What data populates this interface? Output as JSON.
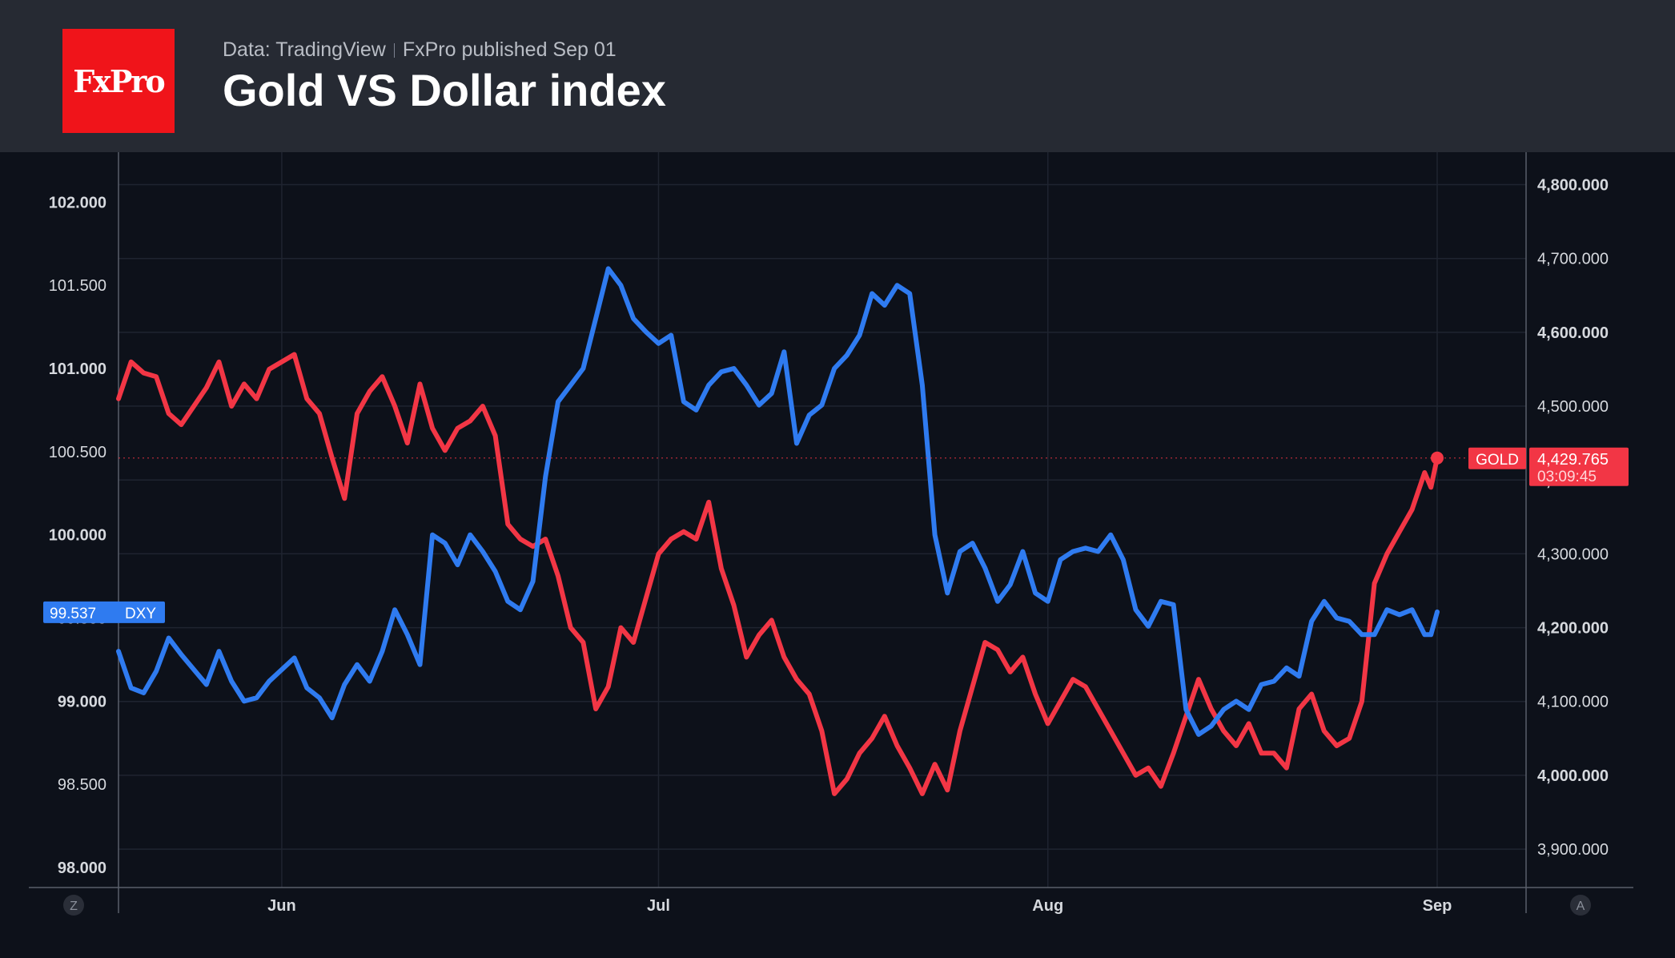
{
  "header": {
    "source": "Data: TradingView",
    "published": "FxPro published Sep 01",
    "title": "Gold VS Dollar index",
    "logo_text": "FxPro"
  },
  "colors": {
    "gold": "#f23645",
    "dxy": "#2f7bf0",
    "brand": "#f0141a"
  },
  "scale_buttons": {
    "left": "Z",
    "right": "A"
  },
  "chart_data": {
    "type": "line",
    "title": "Gold VS Dollar index",
    "x_ticks": [
      "Jun",
      "Jul",
      "Aug",
      "Sep"
    ],
    "x_tick_dates": [
      "2025-06-01",
      "2025-07-01",
      "2025-08-01",
      "2025-09-01"
    ],
    "x_range": [
      "2025-05-19",
      "2025-09-01"
    ],
    "left_axis": {
      "ticks": [
        "98.000",
        "98.500",
        "99.000",
        "99.500",
        "100.000",
        "100.500",
        "101.000",
        "101.500",
        "102.000"
      ],
      "range": [
        97.88,
        102.3
      ]
    },
    "right_axis": {
      "ticks": [
        "3,900.000",
        "4,000.000",
        "4,100.000",
        "4,200.000",
        "4,300.000",
        "4,400.000",
        "4,500.000",
        "4,600.000",
        "4,700.000",
        "4,800.000"
      ],
      "range": [
        3848,
        4844
      ]
    },
    "grid": true,
    "series": [
      {
        "name": "GOLD",
        "axis": "right",
        "color": "#f23645",
        "last_value": "4,429.765",
        "countdown": "03:09:45",
        "points": [
          [
            "2025-05-19",
            4510
          ],
          [
            "2025-05-20",
            4560
          ],
          [
            "2025-05-21",
            4545
          ],
          [
            "2025-05-22",
            4540
          ],
          [
            "2025-05-23",
            4490
          ],
          [
            "2025-05-24",
            4475
          ],
          [
            "2025-05-26",
            4525
          ],
          [
            "2025-05-27",
            4560
          ],
          [
            "2025-05-28",
            4500
          ],
          [
            "2025-05-29",
            4530
          ],
          [
            "2025-05-30",
            4510
          ],
          [
            "2025-05-31",
            4550
          ],
          [
            "2025-06-02",
            4570
          ],
          [
            "2025-06-03",
            4510
          ],
          [
            "2025-06-04",
            4490
          ],
          [
            "2025-06-05",
            4430
          ],
          [
            "2025-06-06",
            4375
          ],
          [
            "2025-06-07",
            4490
          ],
          [
            "2025-06-08",
            4520
          ],
          [
            "2025-06-09",
            4540
          ],
          [
            "2025-06-10",
            4500
          ],
          [
            "2025-06-11",
            4450
          ],
          [
            "2025-06-12",
            4530
          ],
          [
            "2025-06-13",
            4470
          ],
          [
            "2025-06-14",
            4440
          ],
          [
            "2025-06-15",
            4470
          ],
          [
            "2025-06-16",
            4480
          ],
          [
            "2025-06-17",
            4500
          ],
          [
            "2025-06-18",
            4460
          ],
          [
            "2025-06-19",
            4340
          ],
          [
            "2025-06-20",
            4320
          ],
          [
            "2025-06-21",
            4310
          ],
          [
            "2025-06-22",
            4320
          ],
          [
            "2025-06-23",
            4270
          ],
          [
            "2025-06-24",
            4200
          ],
          [
            "2025-06-25",
            4180
          ],
          [
            "2025-06-26",
            4090
          ],
          [
            "2025-06-27",
            4120
          ],
          [
            "2025-06-28",
            4200
          ],
          [
            "2025-06-29",
            4180
          ],
          [
            "2025-06-30",
            4240
          ],
          [
            "2025-07-01",
            4300
          ],
          [
            "2025-07-02",
            4320
          ],
          [
            "2025-07-03",
            4330
          ],
          [
            "2025-07-04",
            4320
          ],
          [
            "2025-07-05",
            4370
          ],
          [
            "2025-07-06",
            4280
          ],
          [
            "2025-07-07",
            4230
          ],
          [
            "2025-07-08",
            4160
          ],
          [
            "2025-07-09",
            4190
          ],
          [
            "2025-07-10",
            4210
          ],
          [
            "2025-07-11",
            4160
          ],
          [
            "2025-07-12",
            4130
          ],
          [
            "2025-07-13",
            4110
          ],
          [
            "2025-07-14",
            4060
          ],
          [
            "2025-07-15",
            3975
          ],
          [
            "2025-07-16",
            3995
          ],
          [
            "2025-07-17",
            4030
          ],
          [
            "2025-07-18",
            4050
          ],
          [
            "2025-07-19",
            4080
          ],
          [
            "2025-07-20",
            4040
          ],
          [
            "2025-07-21",
            4010
          ],
          [
            "2025-07-22",
            3975
          ],
          [
            "2025-07-23",
            4015
          ],
          [
            "2025-07-24",
            3980
          ],
          [
            "2025-07-25",
            4060
          ],
          [
            "2025-07-26",
            4120
          ],
          [
            "2025-07-27",
            4180
          ],
          [
            "2025-07-28",
            4170
          ],
          [
            "2025-07-29",
            4140
          ],
          [
            "2025-07-30",
            4160
          ],
          [
            "2025-07-31",
            4110
          ],
          [
            "2025-08-01",
            4070
          ],
          [
            "2025-08-02",
            4100
          ],
          [
            "2025-08-03",
            4130
          ],
          [
            "2025-08-04",
            4120
          ],
          [
            "2025-08-05",
            4090
          ],
          [
            "2025-08-06",
            4060
          ],
          [
            "2025-08-07",
            4030
          ],
          [
            "2025-08-08",
            4000
          ],
          [
            "2025-08-09",
            4010
          ],
          [
            "2025-08-10",
            3985
          ],
          [
            "2025-08-11",
            4030
          ],
          [
            "2025-08-12",
            4080
          ],
          [
            "2025-08-13",
            4130
          ],
          [
            "2025-08-14",
            4090
          ],
          [
            "2025-08-15",
            4060
          ],
          [
            "2025-08-16",
            4040
          ],
          [
            "2025-08-17",
            4070
          ],
          [
            "2025-08-18",
            4030
          ],
          [
            "2025-08-19",
            4030
          ],
          [
            "2025-08-20",
            4010
          ],
          [
            "2025-08-21",
            4090
          ],
          [
            "2025-08-22",
            4110
          ],
          [
            "2025-08-23",
            4060
          ],
          [
            "2025-08-24",
            4040
          ],
          [
            "2025-08-25",
            4050
          ],
          [
            "2025-08-26",
            4100
          ],
          [
            "2025-08-27",
            4260
          ],
          [
            "2025-08-28",
            4300
          ],
          [
            "2025-08-29",
            4330
          ],
          [
            "2025-08-30",
            4360
          ],
          [
            "2025-08-31",
            4410
          ],
          [
            "2025-08-31T12:00",
            4390
          ],
          [
            "2025-09-01",
            4429.765
          ]
        ]
      },
      {
        "name": "DXY",
        "axis": "left",
        "color": "#2f7bf0",
        "last_value": "99.537",
        "points": [
          [
            "2025-05-19",
            99.3
          ],
          [
            "2025-05-20",
            99.08
          ],
          [
            "2025-05-21",
            99.05
          ],
          [
            "2025-05-22",
            99.18
          ],
          [
            "2025-05-23",
            99.38
          ],
          [
            "2025-05-24",
            99.28
          ],
          [
            "2025-05-26",
            99.1
          ],
          [
            "2025-05-27",
            99.3
          ],
          [
            "2025-05-28",
            99.12
          ],
          [
            "2025-05-29",
            99.0
          ],
          [
            "2025-05-30",
            99.02
          ],
          [
            "2025-05-31",
            99.12
          ],
          [
            "2025-06-02",
            99.26
          ],
          [
            "2025-06-03",
            99.08
          ],
          [
            "2025-06-04",
            99.02
          ],
          [
            "2025-06-05",
            98.9
          ],
          [
            "2025-06-06",
            99.1
          ],
          [
            "2025-06-07",
            99.22
          ],
          [
            "2025-06-08",
            99.12
          ],
          [
            "2025-06-09",
            99.3
          ],
          [
            "2025-06-10",
            99.55
          ],
          [
            "2025-06-11",
            99.4
          ],
          [
            "2025-06-12",
            99.22
          ],
          [
            "2025-06-13",
            100.0
          ],
          [
            "2025-06-14",
            99.95
          ],
          [
            "2025-06-15",
            99.82
          ],
          [
            "2025-06-16",
            100.0
          ],
          [
            "2025-06-17",
            99.9
          ],
          [
            "2025-06-18",
            99.78
          ],
          [
            "2025-06-19",
            99.6
          ],
          [
            "2025-06-20",
            99.55
          ],
          [
            "2025-06-21",
            99.72
          ],
          [
            "2025-06-22",
            100.35
          ],
          [
            "2025-06-23",
            100.8
          ],
          [
            "2025-06-24",
            100.9
          ],
          [
            "2025-06-25",
            101.0
          ],
          [
            "2025-06-26",
            101.3
          ],
          [
            "2025-06-27",
            101.6
          ],
          [
            "2025-06-28",
            101.5
          ],
          [
            "2025-06-29",
            101.3
          ],
          [
            "2025-06-30",
            101.22
          ],
          [
            "2025-07-01",
            101.15
          ],
          [
            "2025-07-02",
            101.2
          ],
          [
            "2025-07-03",
            100.8
          ],
          [
            "2025-07-04",
            100.75
          ],
          [
            "2025-07-05",
            100.9
          ],
          [
            "2025-07-06",
            100.98
          ],
          [
            "2025-07-07",
            101.0
          ],
          [
            "2025-07-08",
            100.9
          ],
          [
            "2025-07-09",
            100.78
          ],
          [
            "2025-07-10",
            100.85
          ],
          [
            "2025-07-11",
            101.1
          ],
          [
            "2025-07-12",
            100.55
          ],
          [
            "2025-07-13",
            100.72
          ],
          [
            "2025-07-14",
            100.78
          ],
          [
            "2025-07-15",
            101.0
          ],
          [
            "2025-07-16",
            101.08
          ],
          [
            "2025-07-17",
            101.2
          ],
          [
            "2025-07-18",
            101.45
          ],
          [
            "2025-07-19",
            101.38
          ],
          [
            "2025-07-20",
            101.5
          ],
          [
            "2025-07-21",
            101.45
          ],
          [
            "2025-07-22",
            100.9
          ],
          [
            "2025-07-23",
            100.0
          ],
          [
            "2025-07-24",
            99.65
          ],
          [
            "2025-07-25",
            99.9
          ],
          [
            "2025-07-26",
            99.95
          ],
          [
            "2025-07-27",
            99.8
          ],
          [
            "2025-07-28",
            99.6
          ],
          [
            "2025-07-29",
            99.7
          ],
          [
            "2025-07-30",
            99.9
          ],
          [
            "2025-07-31",
            99.65
          ],
          [
            "2025-08-01",
            99.6
          ],
          [
            "2025-08-02",
            99.85
          ],
          [
            "2025-08-03",
            99.9
          ],
          [
            "2025-08-04",
            99.92
          ],
          [
            "2025-08-05",
            99.9
          ],
          [
            "2025-08-06",
            100.0
          ],
          [
            "2025-08-07",
            99.85
          ],
          [
            "2025-08-08",
            99.55
          ],
          [
            "2025-08-09",
            99.45
          ],
          [
            "2025-08-10",
            99.6
          ],
          [
            "2025-08-11",
            99.58
          ],
          [
            "2025-08-12",
            98.95
          ],
          [
            "2025-08-13",
            98.8
          ],
          [
            "2025-08-14",
            98.85
          ],
          [
            "2025-08-15",
            98.95
          ],
          [
            "2025-08-16",
            99.0
          ],
          [
            "2025-08-17",
            98.95
          ],
          [
            "2025-08-18",
            99.1
          ],
          [
            "2025-08-19",
            99.12
          ],
          [
            "2025-08-20",
            99.2
          ],
          [
            "2025-08-21",
            99.15
          ],
          [
            "2025-08-22",
            99.48
          ],
          [
            "2025-08-23",
            99.6
          ],
          [
            "2025-08-24",
            99.5
          ],
          [
            "2025-08-25",
            99.48
          ],
          [
            "2025-08-26",
            99.4
          ],
          [
            "2025-08-27",
            99.4
          ],
          [
            "2025-08-28",
            99.55
          ],
          [
            "2025-08-29",
            99.52
          ],
          [
            "2025-08-30",
            99.55
          ],
          [
            "2025-08-31",
            99.4
          ],
          [
            "2025-08-31T12:00",
            99.4
          ],
          [
            "2025-09-01",
            99.537
          ]
        ]
      }
    ]
  }
}
